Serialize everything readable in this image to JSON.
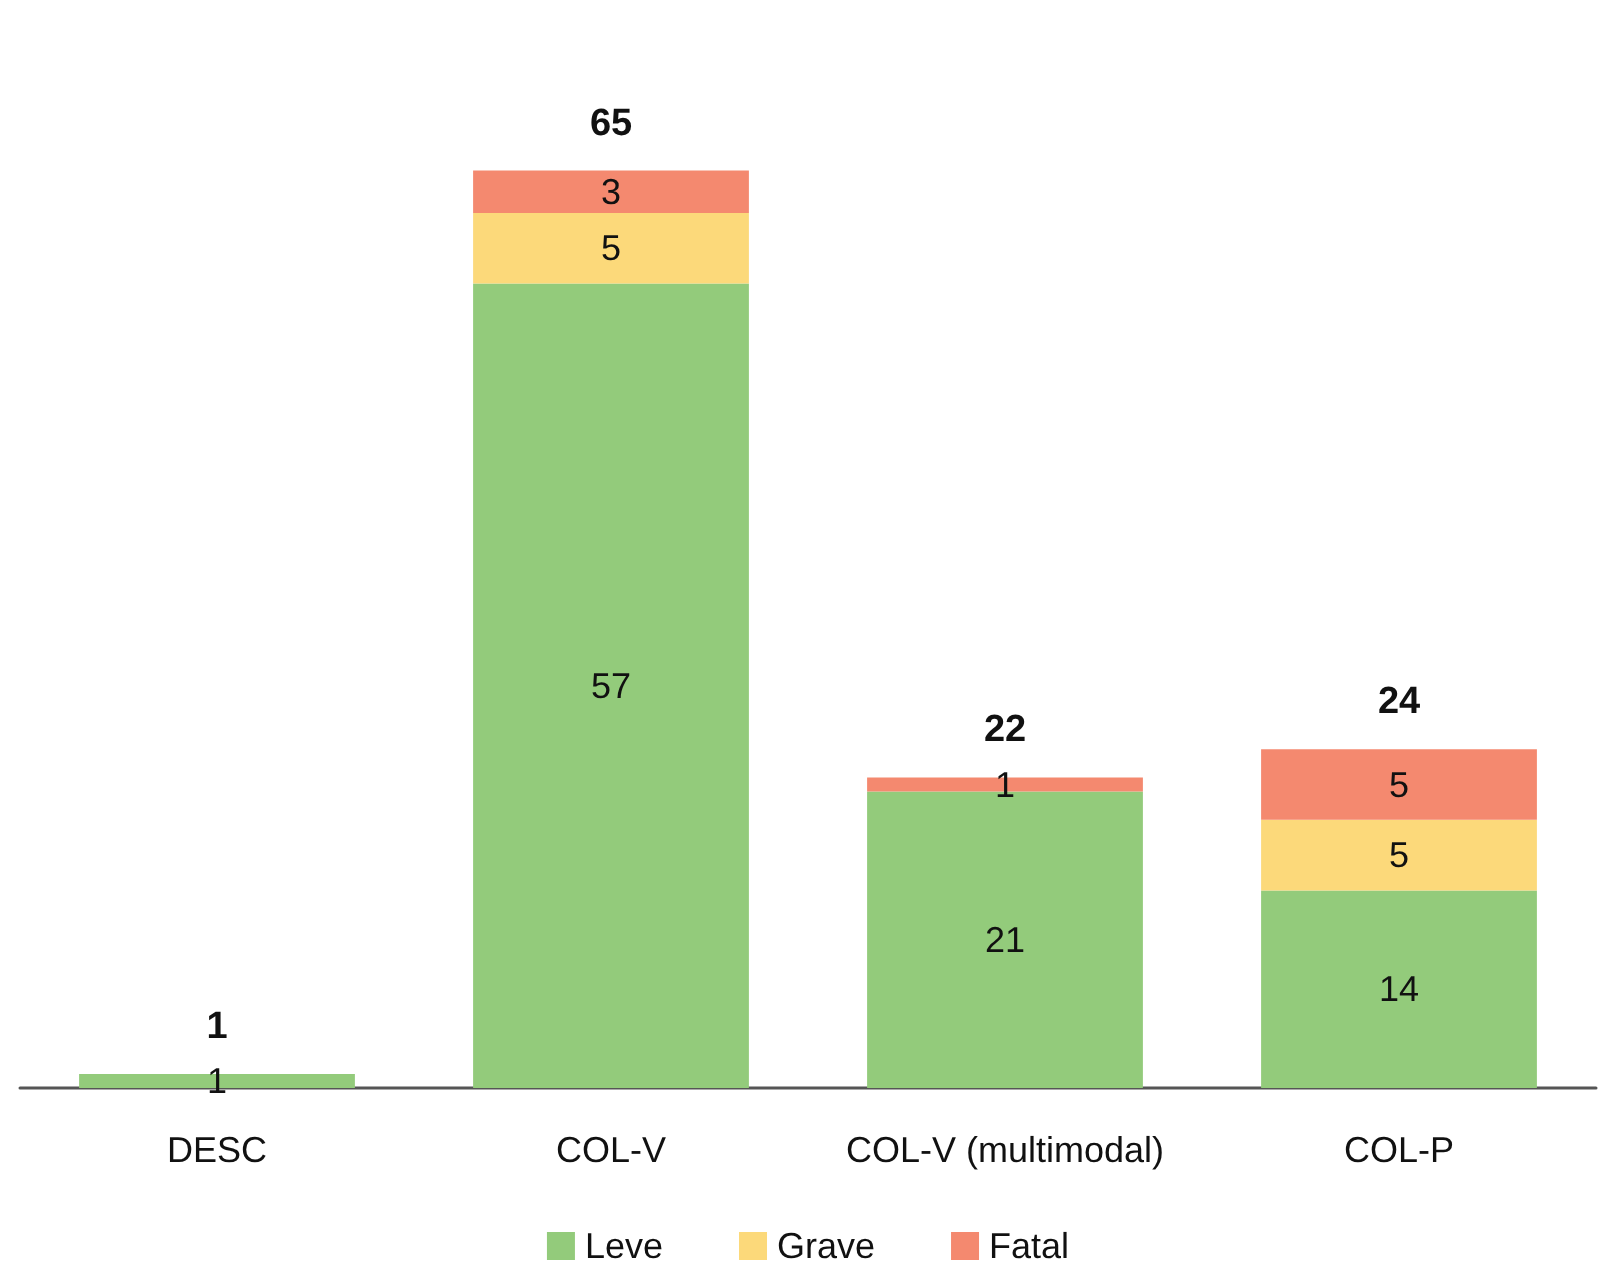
{
  "chart_data": {
    "type": "bar",
    "stacked": true,
    "categories": [
      "DESC",
      "COL-V",
      "COL-V (multimodal)",
      "COL-P"
    ],
    "series": [
      {
        "name": "Leve",
        "color": "#93cb7b",
        "values": [
          1,
          57,
          21,
          14
        ]
      },
      {
        "name": "Grave",
        "color": "#fcd97a",
        "values": [
          null,
          5,
          null,
          5
        ]
      },
      {
        "name": "Fatal",
        "color": "#f4896f",
        "values": [
          null,
          3,
          1,
          5
        ]
      }
    ],
    "data_labels": true,
    "totals": [
      "1",
      "65",
      "22",
      "24"
    ],
    "legend": "bottom"
  }
}
